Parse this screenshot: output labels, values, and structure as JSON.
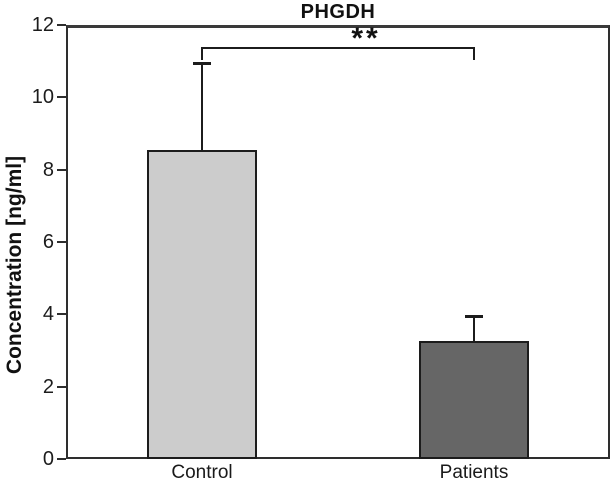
{
  "chart_data": {
    "type": "bar",
    "title": "PHGDH",
    "categories": [
      "Control",
      "Patients"
    ],
    "values": [
      8.55,
      3.25
    ],
    "errors": [
      2.4,
      0.7
    ],
    "error_bars": "upper only, capped",
    "xlabel": "",
    "ylabel": "Concentration [ng/ml]",
    "ylim": [
      0,
      12
    ],
    "yticks": [
      0,
      2,
      4,
      6,
      8,
      10,
      12
    ],
    "grid": false,
    "legend": "none",
    "bar_colors": [
      "#cccccc",
      "#666666"
    ],
    "bar_border_color": "#1c1c1c",
    "significance": {
      "label": "**",
      "between": [
        "Control",
        "Patients"
      ],
      "bracket_level": 11.4
    }
  },
  "colors": {
    "background": "#ffffff",
    "axis": "#2e2e2e",
    "text": "#1c1c1c"
  }
}
